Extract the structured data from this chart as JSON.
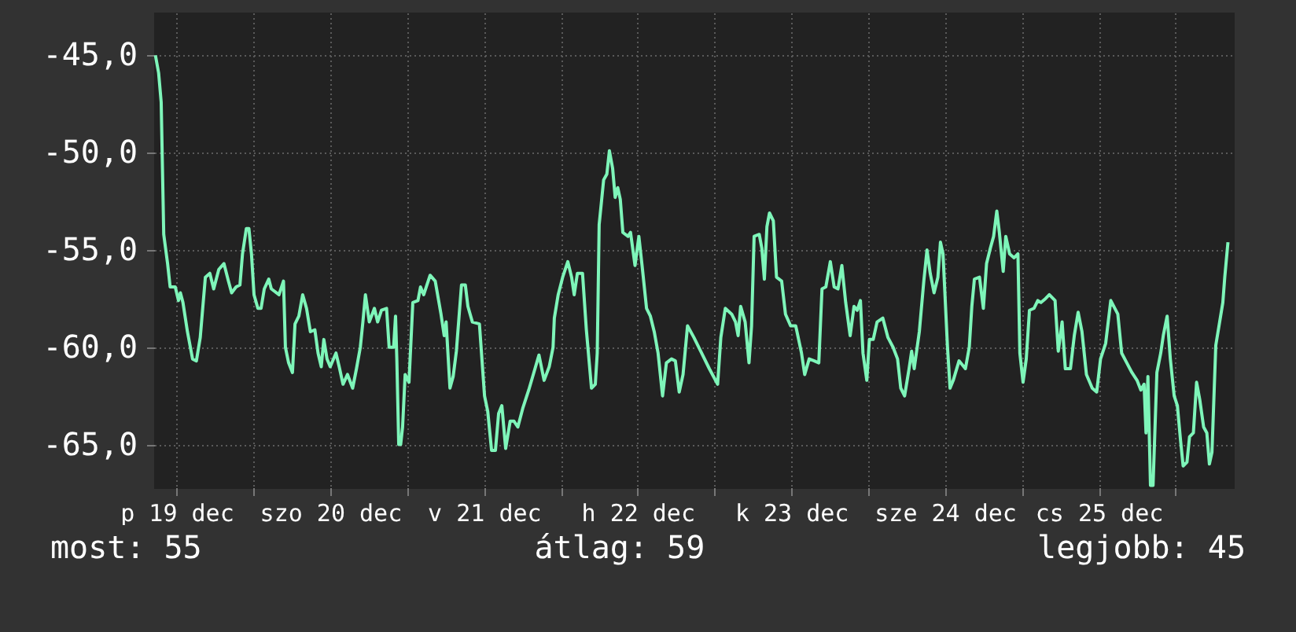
{
  "chart_data": {
    "type": "line",
    "color": "#7ef5b9",
    "grid": true,
    "legend": false,
    "xlim": [
      "--12-19T08:30",
      "--12-26T09:00"
    ],
    "xticks": [
      {
        "value": "--12-19T12:00",
        "label": "p 19 dec"
      },
      {
        "value": "--12-20T00:00",
        "label": null
      },
      {
        "value": "--12-20T12:00",
        "label": "szo 20 dec"
      },
      {
        "value": "--12-21T00:00",
        "label": null
      },
      {
        "value": "--12-21T12:00",
        "label": "v 21 dec"
      },
      {
        "value": "--12-22T00:00",
        "label": null
      },
      {
        "value": "--12-22T12:00",
        "label": "h 22 dec"
      },
      {
        "value": "--12-23T00:00",
        "label": null
      },
      {
        "value": "--12-23T12:00",
        "label": "k 23 dec"
      },
      {
        "value": "--12-24T00:00",
        "label": null
      },
      {
        "value": "--12-24T12:00",
        "label": "sze 24 dec"
      },
      {
        "value": "--12-25T00:00",
        "label": null
      },
      {
        "value": "--12-25T12:00",
        "label": "cs 25 dec"
      },
      {
        "value": "--12-26T00:00",
        "label": null
      }
    ],
    "ylim": [
      -67.2,
      -42.8
    ],
    "yticks": [
      {
        "value": -45,
        "label": "-45,0"
      },
      {
        "value": -50,
        "label": "-50,0"
      },
      {
        "value": -55,
        "label": "-55,0"
      },
      {
        "value": -60,
        "label": "-60,0"
      },
      {
        "value": -65,
        "label": "-65,0"
      }
    ],
    "annotations": [
      "most: 55",
      "átlag: 59",
      "legjobb: 45"
    ],
    "x": [
      "--12-19T08:42",
      "--12-19T09:12",
      "--12-19T09:36",
      "--12-19T10:00",
      "--12-19T10:36",
      "--12-19T11:00",
      "--12-19T11:48",
      "--12-19T12:18",
      "--12-19T12:36",
      "--12-19T13:00",
      "--12-19T13:42",
      "--12-19T14:30",
      "--12-19T15:06",
      "--12-19T15:42",
      "--12-19T16:30",
      "--12-19T17:12",
      "--12-19T17:48",
      "--12-19T18:36",
      "--12-19T19:24",
      "--12-19T20:06",
      "--12-19T20:36",
      "--12-19T21:18",
      "--12-19T21:54",
      "--12-19T22:18",
      "--12-19T22:54",
      "--12-19T23:18",
      "--12-19T23:42",
      "--12-20T00:06",
      "--12-20T00:42",
      "--12-20T01:12",
      "--12-20T01:42",
      "--12-20T02:24",
      "--12-20T02:48",
      "--12-20T04:00",
      "--12-20T04:42",
      "--12-20T05:00",
      "--12-20T05:30",
      "--12-20T06:06",
      "--12-20T06:30",
      "--12-20T07:06",
      "--12-20T07:42",
      "--12-20T08:18",
      "--12-20T08:54",
      "--12-20T09:36",
      "--12-20T10:06",
      "--12-20T10:36",
      "--12-20T11:00",
      "--12-20T11:30",
      "--12-20T12:00",
      "--12-20T12:54",
      "--12-20T13:24",
      "--12-20T14:00",
      "--12-20T14:42",
      "--12-20T15:30",
      "--12-20T16:06",
      "--12-20T16:42",
      "--12-20T17:06",
      "--12-20T17:30",
      "--12-20T18:06",
      "--12-20T18:54",
      "--12-20T19:24",
      "--12-20T20:00",
      "--12-20T20:48",
      "--12-20T21:12",
      "--12-20T21:54",
      "--12-20T22:12",
      "--12-20T22:24",
      "--12-20T22:42",
      "--12-20T23:00",
      "--12-20T23:18",
      "--12-20T23:42",
      "--12-21T00:18",
      "--12-21T00:54",
      "--12-21T01:42",
      "--12-21T02:06",
      "--12-21T02:36",
      "--12-21T03:36",
      "--12-21T04:24",
      "--12-21T05:18",
      "--12-21T05:48",
      "--12-21T06:06",
      "--12-21T06:42",
      "--12-21T07:12",
      "--12-21T07:42",
      "--12-21T08:30",
      "--12-21T09:06",
      "--12-21T09:30",
      "--12-21T10:12",
      "--12-21T11:18",
      "--12-21T12:06",
      "--12-21T12:36",
      "--12-21T13:12",
      "--12-21T13:48",
      "--12-21T14:18",
      "--12-21T14:48",
      "--12-21T15:24",
      "--12-21T16:06",
      "--12-21T16:42",
      "--12-21T17:18",
      "--12-21T18:06",
      "--12-21T19:00",
      "--12-21T19:48",
      "--12-21T20:36",
      "--12-21T21:24",
      "--12-21T22:12",
      "--12-21T22:48",
      "--12-21T23:00",
      "--12-21T23:36",
      "--12-22T00:18",
      "--12-22T01:06",
      "--12-22T01:42",
      "--12-22T02:06",
      "--12-22T02:36",
      "--12-22T03:24",
      "--12-22T04:00",
      "--12-22T04:48",
      "--12-22T05:24",
      "--12-22T05:42",
      "--12-22T06:00",
      "--12-22T06:42",
      "--12-22T07:12",
      "--12-22T07:36",
      "--12-22T08:06",
      "--12-22T08:30",
      "--12-22T08:54",
      "--12-22T09:18",
      "--12-22T09:42",
      "--12-22T10:30",
      "--12-22T10:54",
      "--12-22T11:36",
      "--12-22T12:12",
      "--12-22T12:42",
      "--12-22T13:24",
      "--12-22T14:00",
      "--12-22T14:36",
      "--12-22T15:12",
      "--12-22T15:54",
      "--12-22T16:30",
      "--12-22T17:18",
      "--12-22T17:54",
      "--12-22T18:30",
      "--12-22T19:06",
      "--12-22T19:48",
      "--12-22T20:48",
      "--12-22T22:00",
      "--12-22T23:12",
      "--12-23T00:30",
      "--12-23T01:00",
      "--12-23T01:42",
      "--12-23T02:42",
      "--12-23T03:18",
      "--12-23T03:42",
      "--12-23T04:06",
      "--12-23T04:48",
      "--12-23T05:24",
      "--12-23T05:48",
      "--12-23T06:12",
      "--12-23T07:00",
      "--12-23T07:24",
      "--12-23T07:48",
      "--12-23T08:12",
      "--12-23T08:36",
      "--12-23T09:12",
      "--12-23T09:42",
      "--12-23T10:30",
      "--12-23T11:06",
      "--12-23T11:54",
      "--12-23T12:42",
      "--12-23T13:36",
      "--12-23T14:06",
      "--12-23T14:48",
      "--12-23T15:36",
      "--12-23T16:18",
      "--12-23T16:48",
      "--12-23T17:24",
      "--12-23T18:06",
      "--12-23T18:42",
      "--12-23T19:18",
      "--12-23T19:54",
      "--12-23T20:30",
      "--12-23T21:12",
      "--12-23T21:48",
      "--12-23T22:18",
      "--12-23T22:48",
      "--12-23T23:12",
      "--12-23T23:48",
      "--12-24T00:12",
      "--12-24T00:48",
      "--12-24T01:24",
      "--12-24T02:18",
      "--12-24T03:06",
      "--12-24T03:54",
      "--12-24T04:36",
      "--12-24T05:06",
      "--12-24T05:42",
      "--12-24T06:24",
      "--12-24T06:48",
      "--12-24T07:12",
      "--12-24T08:00",
      "--12-24T08:42",
      "--12-24T09:12",
      "--12-24T09:42",
      "--12-24T10:18",
      "--12-24T10:54",
      "--12-24T11:18",
      "--12-24T11:42",
      "--12-24T12:24",
      "--12-24T12:48",
      "--12-24T13:18",
      "--12-24T14:12",
      "--12-24T15:12",
      "--12-24T15:48",
      "--12-24T16:12",
      "--12-24T16:36",
      "--12-24T17:24",
      "--12-24T18:00",
      "--12-24T18:30",
      "--12-24T19:06",
      "--12-24T19:36",
      "--12-24T20:06",
      "--12-24T20:30",
      "--12-24T21:06",
      "--12-24T21:30",
      "--12-24T22:06",
      "--12-24T22:48",
      "--12-24T23:24",
      "--12-24T23:42",
      "--12-25T00:12",
      "--12-25T00:42",
      "--12-25T01:12",
      "--12-25T01:54",
      "--12-25T02:30",
      "--12-25T03:00",
      "--12-25T03:42",
      "--12-25T04:18",
      "--12-25T05:12",
      "--12-25T05:42",
      "--12-25T06:18",
      "--12-25T06:48",
      "--12-25T07:36",
      "--12-25T08:12",
      "--12-25T08:48",
      "--12-25T09:24",
      "--12-25T10:06",
      "--12-25T11:00",
      "--12-25T11:42",
      "--12-25T12:18",
      "--12-25T13:06",
      "--12-25T13:54",
      "--12-25T15:00",
      "--12-25T15:36",
      "--12-25T16:24",
      "--12-25T17:12",
      "--12-25T18:00",
      "--12-25T18:36",
      "--12-25T19:06",
      "--12-25T19:24",
      "--12-25T19:42",
      "--12-25T20:06",
      "--12-25T20:30",
      "--12-25T21:06",
      "--12-25T21:42",
      "--12-25T22:06",
      "--12-25T22:42",
      "--12-25T23:12",
      "--12-25T23:48",
      "--12-26T00:18",
      "--12-26T00:48",
      "--12-26T01:12",
      "--12-26T01:48",
      "--12-26T02:12",
      "--12-26T02:48",
      "--12-26T03:18",
      "--12-26T03:48",
      "--12-26T04:24",
      "--12-26T04:54",
      "--12-26T05:18",
      "--12-26T05:42",
      "--12-26T06:18",
      "--12-26T06:54",
      "--12-26T07:24",
      "--12-26T07:42",
      "--12-26T08:12"
    ],
    "values": [
      -45.0,
      -45.9,
      -47.4,
      -54.2,
      -55.7,
      -56.9,
      -56.9,
      -57.6,
      -57.2,
      -57.7,
      -59.2,
      -60.6,
      -60.7,
      -59.5,
      -56.4,
      -56.2,
      -57.0,
      -56.0,
      -55.7,
      -56.6,
      -57.2,
      -56.9,
      -56.8,
      -55.2,
      -53.9,
      -53.9,
      -55.2,
      -57.3,
      -58.0,
      -58.0,
      -57.0,
      -56.5,
      -57.0,
      -57.3,
      -56.6,
      -60.0,
      -60.8,
      -61.3,
      -58.8,
      -58.4,
      -57.3,
      -58.0,
      -59.2,
      -59.1,
      -60.3,
      -61.0,
      -59.6,
      -60.6,
      -61.0,
      -60.3,
      -61.0,
      -61.9,
      -61.4,
      -62.1,
      -61.1,
      -60.0,
      -58.7,
      -57.3,
      -58.7,
      -58.0,
      -58.7,
      -58.1,
      -58.0,
      -60.0,
      -60.0,
      -58.4,
      -60.6,
      -65.0,
      -65.0,
      -64.1,
      -61.4,
      -61.8,
      -57.7,
      -57.6,
      -56.9,
      -57.3,
      -56.3,
      -56.6,
      -58.3,
      -59.4,
      -58.7,
      -62.1,
      -61.5,
      -60.2,
      -56.8,
      -56.8,
      -57.9,
      -58.7,
      -58.8,
      -62.5,
      -63.3,
      -65.3,
      -65.3,
      -63.4,
      -63.0,
      -65.2,
      -63.8,
      -63.8,
      -64.1,
      -63.1,
      -62.2,
      -61.3,
      -60.4,
      -61.7,
      -61.0,
      -60.0,
      -58.5,
      -57.3,
      -56.4,
      -55.6,
      -56.4,
      -57.3,
      -56.2,
      -56.2,
      -59.1,
      -62.1,
      -61.9,
      -60.3,
      -53.7,
      -51.4,
      -51.1,
      -49.9,
      -50.8,
      -52.3,
      -51.8,
      -52.4,
      -54.1,
      -54.3,
      -54.1,
      -55.8,
      -54.3,
      -55.8,
      -58.0,
      -58.4,
      -59.2,
      -60.3,
      -62.5,
      -60.8,
      -60.6,
      -60.7,
      -62.3,
      -61.4,
      -58.9,
      -59.5,
      -60.3,
      -61.1,
      -61.9,
      -59.5,
      -58.0,
      -58.3,
      -58.7,
      -59.4,
      -57.9,
      -58.7,
      -60.8,
      -58.9,
      -54.3,
      -54.2,
      -54.9,
      -56.5,
      -53.8,
      -53.1,
      -53.5,
      -56.4,
      -56.6,
      -58.3,
      -58.9,
      -58.9,
      -60.3,
      -61.4,
      -60.6,
      -60.7,
      -60.8,
      -57.0,
      -56.9,
      -55.6,
      -56.9,
      -57.0,
      -55.8,
      -57.7,
      -59.4,
      -57.9,
      -58.1,
      -57.6,
      -60.3,
      -61.7,
      -59.6,
      -59.6,
      -58.7,
      -58.5,
      -59.5,
      -60.0,
      -60.6,
      -62.1,
      -62.5,
      -61.1,
      -60.2,
      -61.1,
      -59.2,
      -56.6,
      -55.0,
      -56.2,
      -57.2,
      -56.4,
      -54.6,
      -55.2,
      -60.0,
      -62.1,
      -61.7,
      -60.7,
      -61.1,
      -60.0,
      -57.9,
      -56.5,
      -56.4,
      -58.0,
      -55.7,
      -54.9,
      -54.3,
      -53.0,
      -54.1,
      -56.1,
      -54.3,
      -55.2,
      -55.4,
      -55.2,
      -60.3,
      -61.8,
      -60.6,
      -58.1,
      -58.0,
      -57.6,
      -57.7,
      -57.5,
      -57.3,
      -57.6,
      -60.2,
      -58.7,
      -61.1,
      -61.1,
      -59.4,
      -58.2,
      -59.2,
      -61.4,
      -62.1,
      -62.3,
      -60.6,
      -59.8,
      -57.6,
      -58.3,
      -60.3,
      -60.8,
      -61.3,
      -61.7,
      -62.2,
      -61.9,
      -64.4,
      -61.5,
      -67.1,
      -67.1,
      -61.3,
      -60.3,
      -59.4,
      -58.4,
      -60.6,
      -62.5,
      -63.0,
      -64.8,
      -66.1,
      -65.9,
      -64.6,
      -64.4,
      -61.8,
      -62.7,
      -64.1,
      -64.4,
      -66.0,
      -65.4,
      -59.9,
      -58.7,
      -57.7,
      -56.4,
      -54.6
    ]
  }
}
